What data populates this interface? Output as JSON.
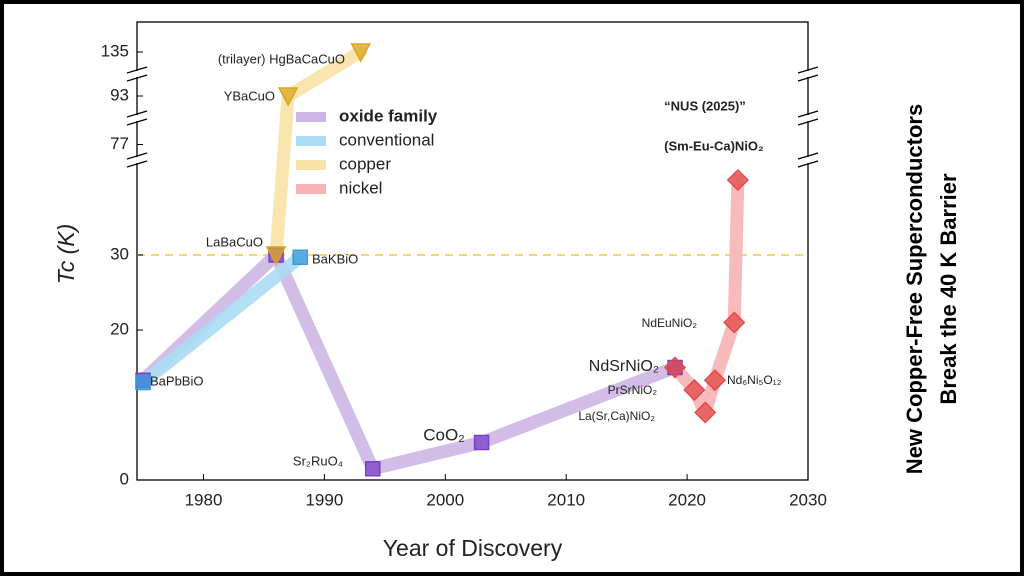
{
  "chart_data": {
    "type": "line",
    "y_label": "Tc (K)",
    "x_label": "Year of Discovery",
    "side_title": [
      "New Copper-Free Superconductors",
      "Break the 40 K Barrier"
    ],
    "xlim": [
      1974.5,
      2030
    ],
    "xticks": [
      1980,
      1990,
      2000,
      2010,
      2020,
      2030
    ],
    "y_segments": [
      {
        "ylim": [
          0,
          42.4
        ],
        "yticks": [
          0,
          20,
          30
        ]
      },
      {
        "ylim": [
          75.5,
          79.5
        ],
        "yticks": [
          77
        ]
      },
      {
        "ylim": [
          90,
          96
        ],
        "yticks": [
          93
        ]
      },
      {
        "ylim": [
          131,
          139
        ],
        "yticks": [
          135
        ]
      }
    ],
    "reference_line": {
      "value": 30,
      "color": "#f7d774"
    },
    "series": [
      {
        "name": "oxide family",
        "color": "#cdb6e4",
        "marker_color": "#7a3fc9",
        "marker": "square",
        "x": [
          1975,
          1986,
          1994,
          2003,
          2019
        ],
        "values": [
          13.3,
          30,
          1.5,
          5,
          15
        ]
      },
      {
        "name": "conventional",
        "color": "#aadcf3",
        "marker_color": "#3a9ad9",
        "marker": "square",
        "x": [
          1975,
          1988
        ],
        "values": [
          13,
          29.7
        ]
      },
      {
        "name": "copper",
        "color": "#f9e2a6",
        "marker_color": "#d9a520",
        "marker": "triangle",
        "x": [
          1986,
          1987,
          1993
        ],
        "values": [
          30,
          93,
          135
        ]
      },
      {
        "name": "nickel",
        "color": "#f7b3b3",
        "marker_color": "#e34848",
        "marker": "diamond",
        "x": [
          2019,
          2020.6,
          2021.5,
          2022.3,
          2023.9,
          2024.2
        ],
        "values": [
          15,
          12,
          9,
          13.3,
          21,
          40
        ]
      }
    ],
    "annotations": [
      "(trilayer) HgBaCaCuO",
      "YBaCuO",
      "LaBaCuO",
      "BaKBiO",
      "BaPbBiO",
      "Sr₂RuO₄",
      "CoO₂",
      "NdSrNiO₂",
      "PrSrNiO₂",
      "La(Sr,Ca)NiO₂",
      "NdEuNiO₂",
      "Nd₆Ni₅O₁₂",
      "“NUS (2025)”",
      "(Sm-Eu-Ca)NiO₂"
    ]
  }
}
